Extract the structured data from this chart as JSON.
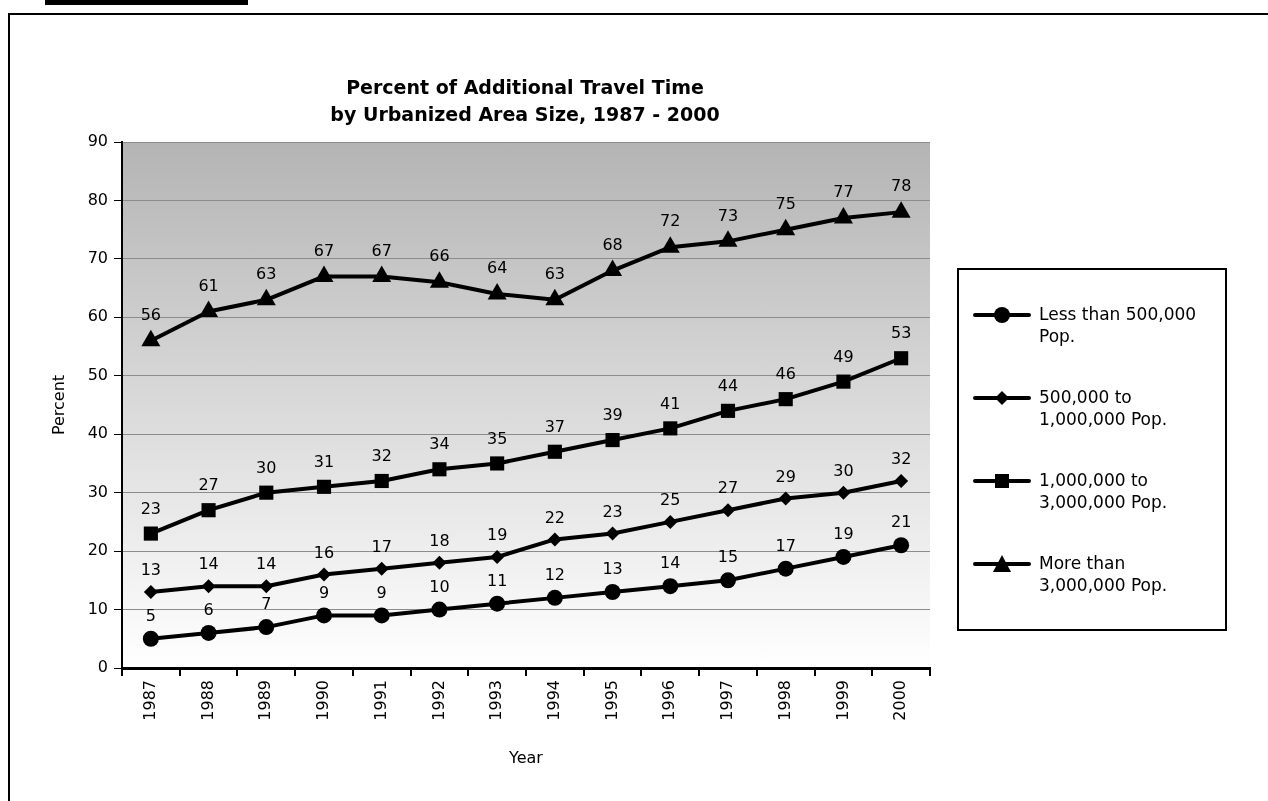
{
  "chart_data": {
    "type": "line",
    "title": "Percent of Additional Travel Time by Urbanized Area Size, 1987 - 2000",
    "xlabel": "Year",
    "ylabel": "Percent",
    "categories": [
      "1987",
      "1988",
      "1989",
      "1990",
      "1991",
      "1992",
      "1993",
      "1994",
      "1995",
      "1996",
      "1997",
      "1998",
      "1999",
      "2000"
    ],
    "series": [
      {
        "name": "Less than 500,000 Pop.",
        "color": "#000000",
        "marker": "circle",
        "values": [
          5,
          6,
          7,
          9,
          9,
          10,
          11,
          12,
          13,
          14,
          15,
          17,
          19,
          21
        ]
      },
      {
        "name": "500,000 to 1,000,000 Pop.",
        "color": "#000000",
        "marker": "diamond",
        "values": [
          13,
          14,
          14,
          16,
          17,
          18,
          19,
          22,
          23,
          25,
          27,
          29,
          30,
          32
        ]
      },
      {
        "name": "1,000,000 to 3,000,000 Pop.",
        "color": "#000000",
        "marker": "square",
        "values": [
          23,
          27,
          30,
          31,
          32,
          34,
          35,
          37,
          39,
          41,
          44,
          46,
          49,
          53
        ]
      },
      {
        "name": "More than 3,000,000 Pop.",
        "color": "#000000",
        "marker": "triangle",
        "values": [
          56,
          61,
          63,
          67,
          67,
          66,
          64,
          63,
          68,
          72,
          73,
          75,
          77,
          78
        ]
      }
    ],
    "ylim": [
      0,
      90
    ],
    "yticks": [
      0,
      10,
      20,
      30,
      40,
      50,
      60,
      70,
      80,
      90
    ],
    "grid": "y",
    "legend": "right",
    "data_labels": true,
    "line_style": "solid"
  }
}
